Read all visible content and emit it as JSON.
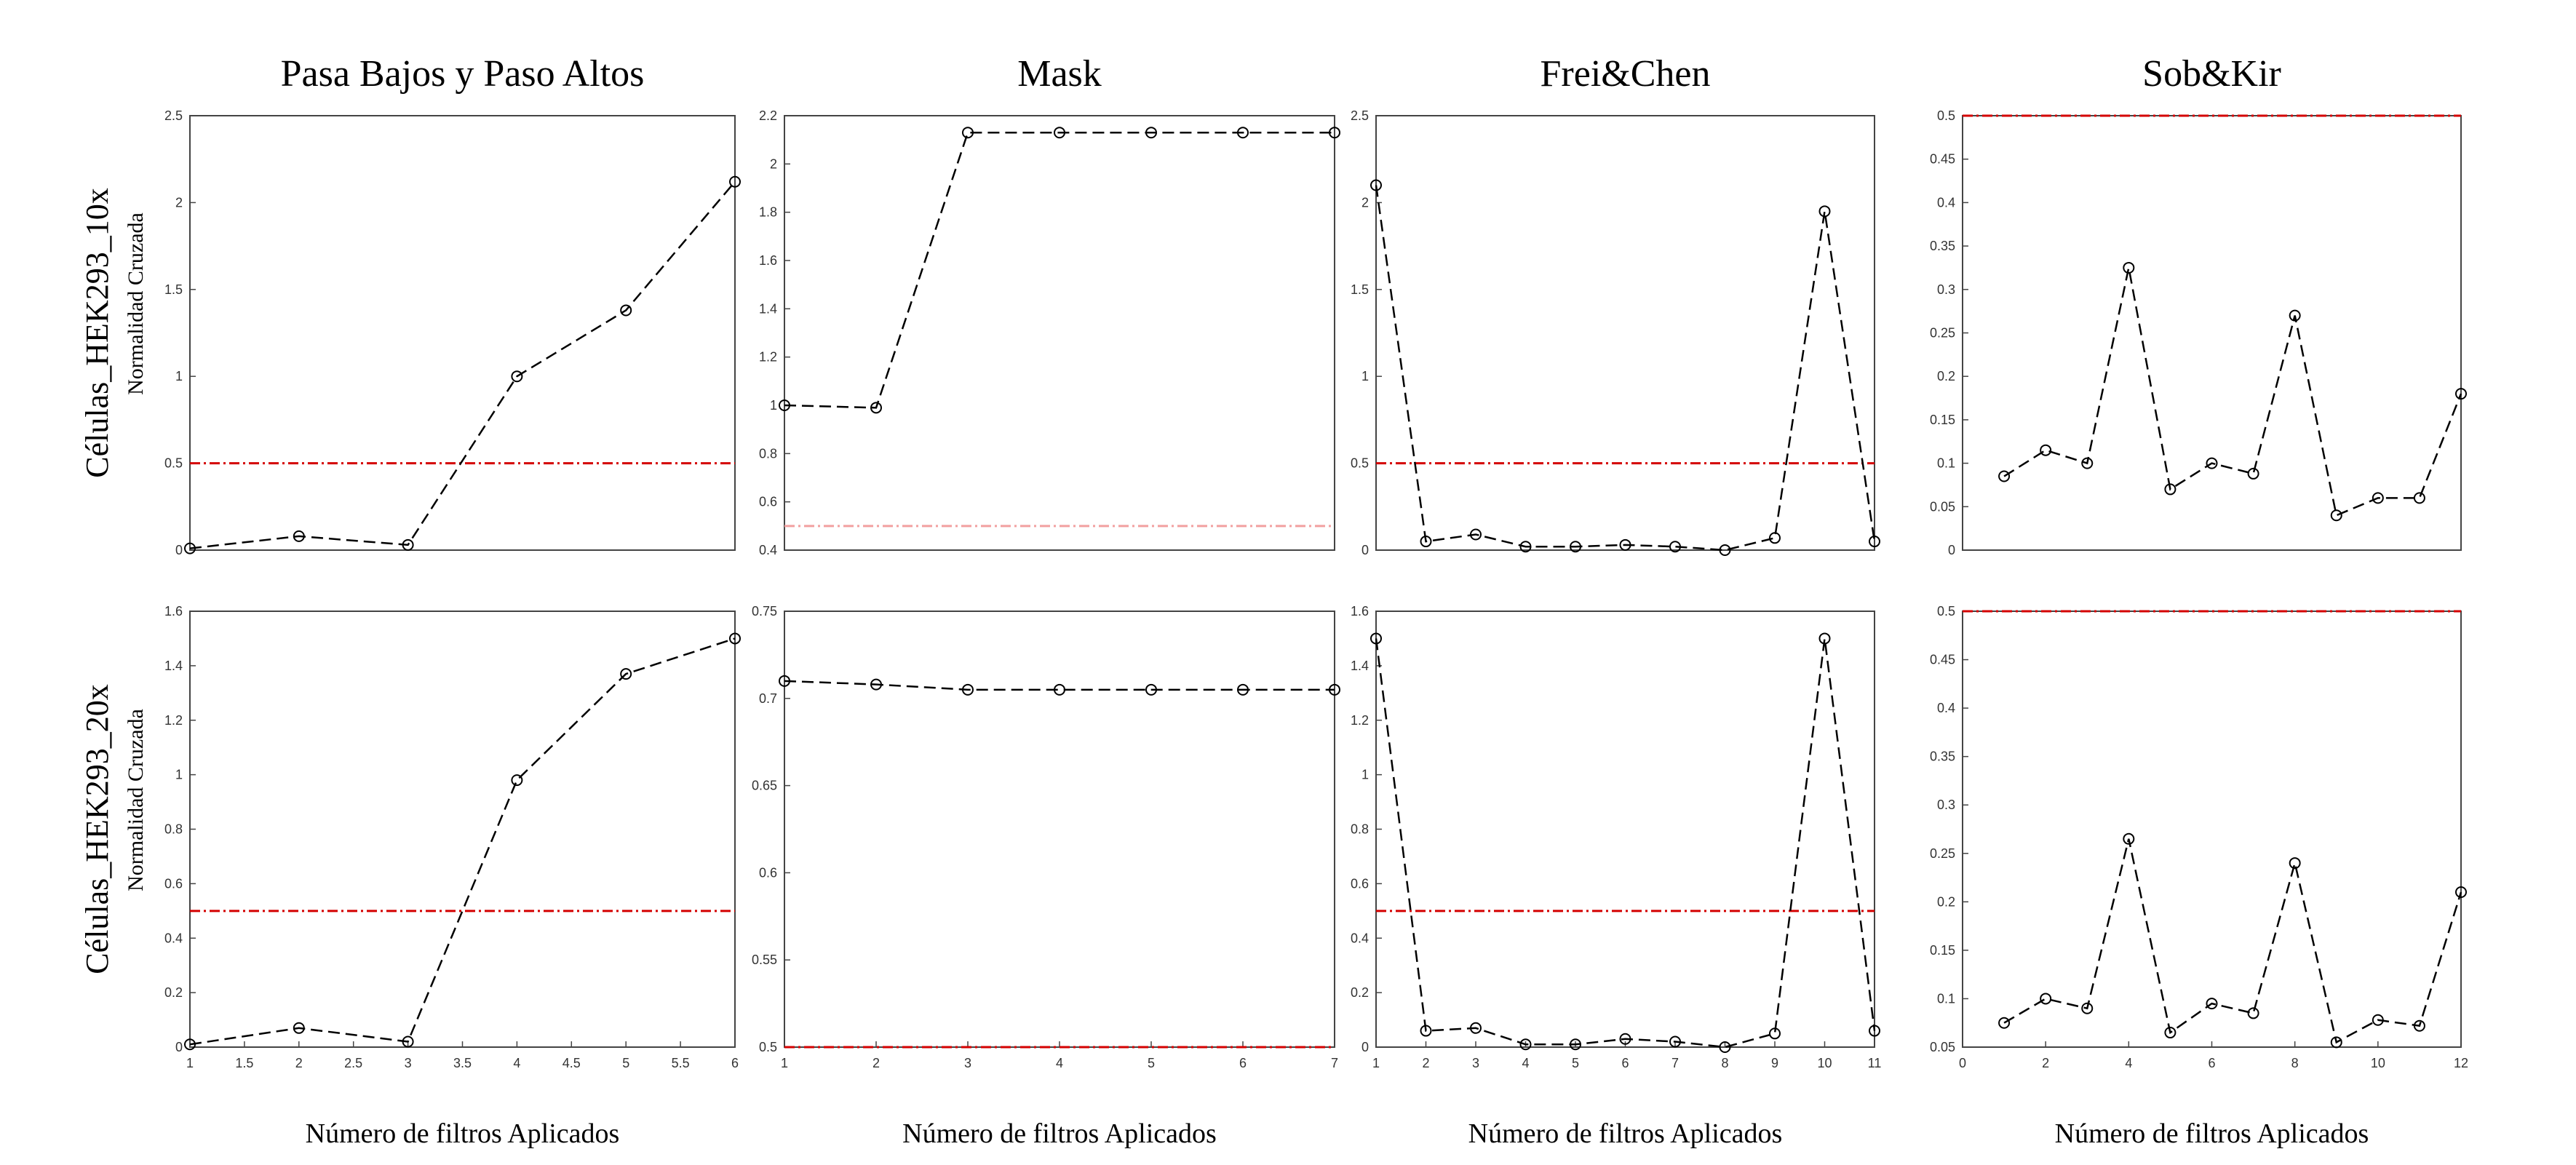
{
  "chart_data": [
    {
      "type": "line",
      "title": "Pasa Bajos y Paso Altos",
      "row_label": "Células_HEK293_10x",
      "y_label": "Normalidad Cruzada",
      "color": "#000000",
      "x": [
        1,
        2,
        3,
        4,
        5,
        6
      ],
      "values": [
        0.01,
        0.08,
        0.03,
        1.0,
        1.38,
        2.12
      ],
      "xlim": [
        1,
        6
      ],
      "ylim": [
        0,
        2.5
      ],
      "yticks": [
        0,
        0.5,
        1,
        1.5,
        2,
        2.5
      ],
      "reference_line": {
        "value": 0.5,
        "color": "#d40000"
      }
    },
    {
      "type": "line",
      "title": "Mask",
      "color": "#000000",
      "x": [
        1,
        2,
        3,
        4,
        5,
        6,
        7
      ],
      "values": [
        1.0,
        0.99,
        2.13,
        2.13,
        2.13,
        2.13,
        2.13
      ],
      "xlim": [
        1,
        7
      ],
      "ylim": [
        0.4,
        2.2
      ],
      "yticks": [
        0.4,
        0.6,
        0.8,
        1,
        1.2,
        1.4,
        1.6,
        1.8,
        2,
        2.2
      ],
      "reference_line": {
        "value": 0.5,
        "color": "#f2a0a0"
      }
    },
    {
      "type": "line",
      "title": "Frei&Chen",
      "color": "#000000",
      "x": [
        1,
        2,
        3,
        4,
        5,
        6,
        7,
        8,
        9,
        10,
        11
      ],
      "values": [
        2.1,
        0.05,
        0.09,
        0.02,
        0.02,
        0.03,
        0.02,
        0.0,
        0.07,
        1.95,
        0.05
      ],
      "xlim": [
        1,
        11
      ],
      "ylim": [
        0,
        2.5
      ],
      "yticks": [
        0,
        0.5,
        1,
        1.5,
        2,
        2.5
      ],
      "reference_line": {
        "value": 0.5,
        "color": "#d40000"
      }
    },
    {
      "type": "line",
      "title": "Sob&Kir",
      "color": "#000000",
      "x": [
        1,
        2,
        3,
        4,
        5,
        6,
        7,
        8,
        9,
        10,
        11,
        12
      ],
      "values": [
        0.085,
        0.115,
        0.1,
        0.325,
        0.07,
        0.1,
        0.088,
        0.27,
        0.04,
        0.06,
        0.06,
        0.18
      ],
      "xlim": [
        0,
        12
      ],
      "ylim": [
        0,
        0.5
      ],
      "yticks": [
        0,
        0.05,
        0.1,
        0.15,
        0.2,
        0.25,
        0.3,
        0.35,
        0.4,
        0.45,
        0.5
      ],
      "reference_line": {
        "value": 0.5,
        "color": "#d40000"
      }
    },
    {
      "type": "line",
      "row_label": "Células_HEK293_20x",
      "y_label": "Normalidad Cruzada",
      "x_label": "Número de filtros Aplicados",
      "color": "#000000",
      "x": [
        1,
        2,
        3,
        4,
        5,
        6
      ],
      "values": [
        0.01,
        0.07,
        0.02,
        0.98,
        1.37,
        1.5
      ],
      "xlim": [
        1,
        6
      ],
      "xticks": [
        1,
        1.5,
        2,
        2.5,
        3,
        3.5,
        4,
        4.5,
        5,
        5.5,
        6
      ],
      "ylim": [
        0,
        1.6
      ],
      "yticks": [
        0,
        0.2,
        0.4,
        0.6,
        0.8,
        1,
        1.2,
        1.4,
        1.6
      ],
      "reference_line": {
        "value": 0.5,
        "color": "#d40000"
      }
    },
    {
      "type": "line",
      "x_label": "Número de filtros Aplicados",
      "color": "#000000",
      "x": [
        1,
        2,
        3,
        4,
        5,
        6,
        7
      ],
      "values": [
        0.71,
        0.708,
        0.705,
        0.705,
        0.705,
        0.705,
        0.705
      ],
      "xlim": [
        1,
        7
      ],
      "xticks": [
        1,
        2,
        3,
        4,
        5,
        6,
        7
      ],
      "ylim": [
        0.5,
        0.75
      ],
      "yticks": [
        0.5,
        0.55,
        0.6,
        0.65,
        0.7,
        0.75
      ],
      "reference_line": {
        "value": 0.5,
        "color": "#d40000"
      }
    },
    {
      "type": "line",
      "x_label": "Número de filtros Aplicados",
      "color": "#000000",
      "x": [
        1,
        2,
        3,
        4,
        5,
        6,
        7,
        8,
        9,
        10,
        11
      ],
      "values": [
        1.5,
        0.06,
        0.07,
        0.01,
        0.01,
        0.03,
        0.02,
        0.0,
        0.05,
        1.5,
        0.06
      ],
      "xlim": [
        1,
        11
      ],
      "xticks": [
        1,
        2,
        3,
        4,
        5,
        6,
        7,
        8,
        9,
        10,
        11
      ],
      "ylim": [
        0,
        1.6
      ],
      "yticks": [
        0,
        0.2,
        0.4,
        0.6,
        0.8,
        1,
        1.2,
        1.4,
        1.6
      ],
      "reference_line": {
        "value": 0.5,
        "color": "#d40000"
      }
    },
    {
      "type": "line",
      "x_label": "Número de filtros Aplicados",
      "color": "#000000",
      "x": [
        1,
        2,
        3,
        4,
        5,
        6,
        7,
        8,
        9,
        10,
        11,
        12
      ],
      "values": [
        0.075,
        0.1,
        0.09,
        0.265,
        0.065,
        0.095,
        0.085,
        0.24,
        0.055,
        0.078,
        0.072,
        0.21
      ],
      "xlim": [
        0,
        12
      ],
      "xticks": [
        0,
        2,
        4,
        6,
        8,
        10,
        12
      ],
      "ylim": [
        0.05,
        0.5
      ],
      "yticks": [
        0.05,
        0.1,
        0.15,
        0.2,
        0.25,
        0.3,
        0.35,
        0.4,
        0.45,
        0.5
      ],
      "reference_line": {
        "value": 0.5,
        "color": "#d40000"
      }
    }
  ]
}
